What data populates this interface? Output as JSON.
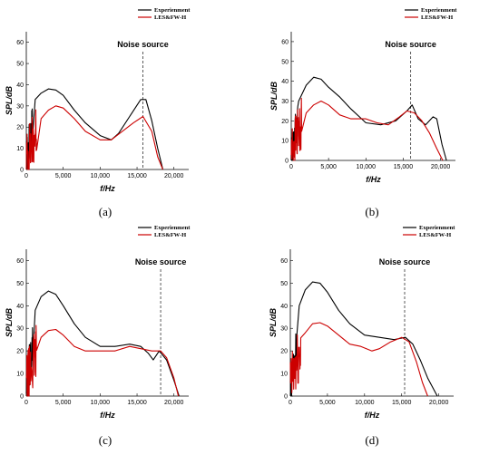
{
  "chart_data": [
    {
      "type": "line",
      "panel_label": "(a)",
      "xlabel": "f/Hz",
      "ylabel": "SPL/dB",
      "xlim": [
        0,
        22000
      ],
      "ylim": [
        0,
        65
      ],
      "xticks": [
        "0",
        "5,000",
        "10,000",
        "15,000",
        "20,000"
      ],
      "yticks": [
        "0",
        "10",
        "20",
        "30",
        "40",
        "50",
        "60"
      ],
      "annotation": {
        "text": "Noise source",
        "x": 15800
      },
      "legend_position": "top-right",
      "series": [
        {
          "name": "Experienment",
          "color": "#000000",
          "x": [
            0,
            200,
            500,
            800,
            1200,
            2000,
            3000,
            4000,
            5000,
            6500,
            8000,
            10000,
            11500,
            12500,
            14000,
            15500,
            16200,
            17000,
            17800,
            18500
          ],
          "y": [
            0,
            22,
            28,
            30,
            33,
            36,
            38,
            37.5,
            35,
            28,
            22,
            16,
            14,
            17,
            25,
            33,
            33,
            23,
            10,
            0
          ]
        },
        {
          "name": "LES&FW-H",
          "color": "#cc0000",
          "x": [
            0,
            1000,
            2000,
            3000,
            4000,
            5000,
            6500,
            8000,
            10000,
            11500,
            13000,
            14500,
            15800,
            17000,
            17800,
            18500
          ],
          "y": [
            10,
            18,
            24,
            28,
            30,
            29,
            24,
            18,
            14,
            14,
            18,
            22,
            25,
            18,
            6,
            0
          ]
        }
      ]
    },
    {
      "type": "line",
      "panel_label": "(b)",
      "xlabel": "f/Hz",
      "ylabel": "SPL/dB",
      "xlim": [
        0,
        22000
      ],
      "ylim": [
        0,
        65
      ],
      "xticks": [
        "0",
        "5,000",
        "10,000",
        "15,000",
        "20,000"
      ],
      "yticks": [
        "0",
        "10",
        "20",
        "30",
        "40",
        "50",
        "60"
      ],
      "annotation": {
        "text": "Noise source",
        "x": 16000
      },
      "legend_position": "top-right",
      "series": [
        {
          "name": "Experienment",
          "color": "#000000",
          "x": [
            0,
            500,
            1000,
            2000,
            3000,
            4000,
            5000,
            6500,
            8000,
            10000,
            12000,
            14000,
            15500,
            16200,
            17000,
            18000,
            19000,
            19500,
            20200,
            20800
          ],
          "y": [
            0,
            24,
            30,
            38,
            42,
            41,
            37,
            32,
            26,
            19,
            18,
            20,
            25,
            28,
            21,
            18,
            22,
            21,
            8,
            0
          ]
        },
        {
          "name": "LES&FW-H",
          "color": "#cc0000",
          "x": [
            0,
            1000,
            2000,
            3000,
            4000,
            5000,
            6500,
            8000,
            10000,
            11500,
            13000,
            14500,
            15500,
            16500,
            17500,
            18500,
            19500,
            20300
          ],
          "y": [
            8,
            17,
            24,
            28,
            30,
            28,
            23,
            21,
            21,
            19,
            18,
            22,
            25,
            24,
            20,
            14,
            6,
            0
          ]
        }
      ]
    },
    {
      "type": "line",
      "panel_label": "(c)",
      "xlabel": "f/Hz",
      "ylabel": "SPL/dB",
      "xlim": [
        0,
        22000
      ],
      "ylim": [
        0,
        65
      ],
      "xticks": [
        "0",
        "5,000",
        "10,000",
        "15,000",
        "20,000"
      ],
      "yticks": [
        "0",
        "10",
        "20",
        "30",
        "40",
        "50",
        "60"
      ],
      "annotation": {
        "text": "Noise source",
        "x": 18200
      },
      "legend_position": "top-right",
      "series": [
        {
          "name": "Experienment",
          "color": "#000000",
          "x": [
            0,
            300,
            700,
            1200,
            2000,
            3000,
            4000,
            5000,
            6500,
            8000,
            10000,
            12000,
            14000,
            15500,
            16500,
            17200,
            18000,
            19000,
            20000,
            20700
          ],
          "y": [
            0,
            22,
            32,
            38,
            44,
            46.5,
            45,
            40,
            32,
            26,
            22,
            22,
            23,
            22,
            19,
            16,
            20,
            16,
            7,
            0
          ]
        },
        {
          "name": "LES&FW-H",
          "color": "#cc0000",
          "x": [
            0,
            1000,
            2000,
            3000,
            4000,
            5000,
            6500,
            8000,
            10000,
            12000,
            14000,
            15500,
            17000,
            18200,
            19000,
            20000,
            20600
          ],
          "y": [
            10,
            20,
            26,
            29,
            29.5,
            27,
            22,
            20,
            20,
            20,
            22,
            21,
            20,
            20,
            17,
            8,
            0
          ]
        }
      ]
    },
    {
      "type": "line",
      "panel_label": "(d)",
      "xlabel": "f/Hz",
      "ylabel": "SPL/dB",
      "xlim": [
        0,
        22000
      ],
      "ylim": [
        0,
        65
      ],
      "xticks": [
        "0",
        "5,000",
        "10,000",
        "15,000",
        "20,000"
      ],
      "yticks": [
        "0",
        "10",
        "20",
        "30",
        "40",
        "50",
        "60"
      ],
      "annotation": {
        "text": "Noise source",
        "x": 15400
      },
      "legend_position": "top-right",
      "series": [
        {
          "name": "Experienment",
          "color": "#000000",
          "x": [
            0,
            300,
            700,
            1200,
            2000,
            3000,
            4000,
            5000,
            6500,
            8000,
            10000,
            12000,
            14000,
            15500,
            16500,
            17500,
            18500,
            19800
          ],
          "y": [
            0,
            24,
            34,
            40,
            47,
            50.5,
            50,
            46,
            38,
            32,
            27,
            26,
            25,
            26,
            23,
            16,
            8,
            0
          ]
        },
        {
          "name": "LES&FW-H",
          "color": "#cc0000",
          "x": [
            0,
            1000,
            2000,
            3000,
            4000,
            5000,
            6500,
            8000,
            9500,
            11000,
            12000,
            13500,
            15000,
            16000,
            17000,
            17800,
            18500
          ],
          "y": [
            10,
            20,
            28,
            32,
            32.5,
            31,
            27,
            23,
            22,
            20,
            21,
            24,
            26,
            24,
            15,
            6,
            0
          ]
        }
      ]
    }
  ]
}
